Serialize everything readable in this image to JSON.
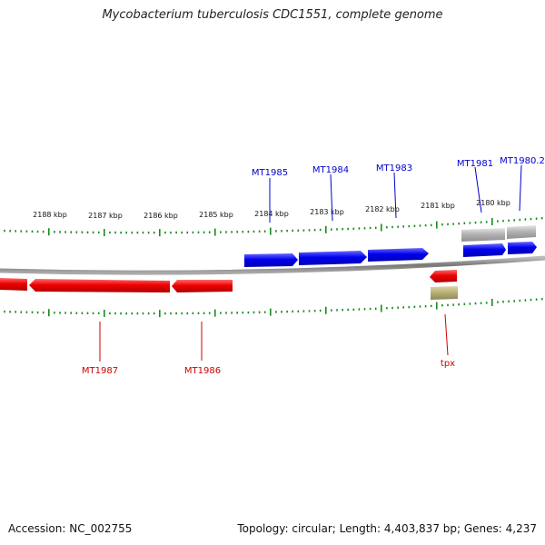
{
  "title": "Mycobacterium tuberculosis CDC1551, complete genome",
  "footer": {
    "accession": "Accession: NC_002755",
    "summary": "Topology: circular; Length: 4,403,837 bp; Genes: 4,237"
  },
  "colors": {
    "forward_gene": "#0000ee",
    "reverse_gene": "#ee0000",
    "pseudo_gene": "#b3b3b3",
    "other_feature": "#b9b27a",
    "backbone": "#888888",
    "tick": "#1a8a1a",
    "label_forward": "#0000cc",
    "label_reverse": "#cc0000"
  },
  "ticks": [
    {
      "label": "2188 kbp"
    },
    {
      "label": "2187 kbp"
    },
    {
      "label": "2186 kbp"
    },
    {
      "label": "2185 kbp"
    },
    {
      "label": "2184 kbp"
    },
    {
      "label": "2183 kbp"
    },
    {
      "label": "2182 kbp"
    },
    {
      "label": "2181 kbp"
    },
    {
      "label": "2180 kbp"
    }
  ],
  "genes": [
    {
      "label": "MT1985",
      "strand": "forward"
    },
    {
      "label": "MT1984",
      "strand": "forward"
    },
    {
      "label": "MT1983",
      "strand": "forward"
    },
    {
      "label": "MT1981",
      "strand": "forward"
    },
    {
      "label": "MT1980.2",
      "strand": "forward"
    },
    {
      "label": "MT1987",
      "strand": "reverse"
    },
    {
      "label": "MT1986",
      "strand": "reverse"
    },
    {
      "label": "tpx",
      "strand": "reverse"
    }
  ]
}
